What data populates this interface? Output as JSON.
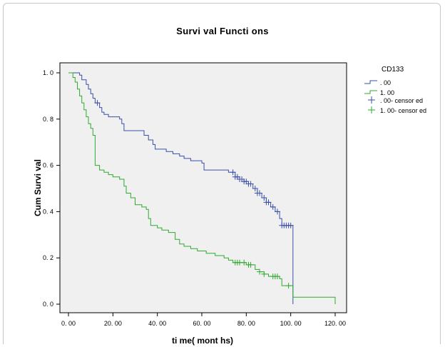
{
  "chart_data": {
    "type": "line",
    "title": "Survi val  Functi ons",
    "xlabel": "ti me( mont hs)",
    "ylabel": "Cum Survi val",
    "xlim": [
      0,
      120
    ],
    "ylim": [
      0,
      1
    ],
    "x_ticks": [
      "0. 00",
      "20. 00",
      "40. 00",
      "60. 00",
      "80. 00",
      "100. 00",
      "120. 00"
    ],
    "y_ticks": [
      "0. 0",
      "0. 2",
      "0. 4",
      "0. 6",
      "0. 8",
      "1. 0"
    ],
    "x_tick_values": [
      0,
      20,
      40,
      60,
      80,
      100,
      120
    ],
    "y_tick_values": [
      0,
      0.2,
      0.4,
      0.6,
      0.8,
      1.0
    ],
    "legend": {
      "title": "CD133",
      "placement": "right",
      "entries": [
        ". 00",
        "1. 00",
        ". 00- censor ed",
        "1. 00- censor ed"
      ]
    },
    "colors": {
      "blue": "#3a4fa8",
      "green": "#2faa2f",
      "plot_bg": "#f0f0f0"
    },
    "series": [
      {
        "name": ". 00",
        "color": "#3a4fa8",
        "points": [
          [
            0,
            1.0
          ],
          [
            5,
            0.99
          ],
          [
            6,
            0.97
          ],
          [
            8,
            0.95
          ],
          [
            9,
            0.93
          ],
          [
            10,
            0.91
          ],
          [
            11,
            0.89
          ],
          [
            12,
            0.87
          ],
          [
            14,
            0.85
          ],
          [
            15,
            0.83
          ],
          [
            16,
            0.82
          ],
          [
            18,
            0.81
          ],
          [
            23,
            0.8
          ],
          [
            24,
            0.78
          ],
          [
            25,
            0.75
          ],
          [
            34,
            0.73
          ],
          [
            36,
            0.71
          ],
          [
            38,
            0.69
          ],
          [
            39,
            0.67
          ],
          [
            44,
            0.66
          ],
          [
            47,
            0.65
          ],
          [
            50,
            0.64
          ],
          [
            52,
            0.63
          ],
          [
            55,
            0.62
          ],
          [
            60,
            0.61
          ],
          [
            61,
            0.58
          ],
          [
            72,
            0.57
          ],
          [
            75,
            0.55
          ],
          [
            77,
            0.54
          ],
          [
            79,
            0.53
          ],
          [
            81,
            0.52
          ],
          [
            83,
            0.5
          ],
          [
            85,
            0.48
          ],
          [
            87,
            0.46
          ],
          [
            89,
            0.44
          ],
          [
            91,
            0.42
          ],
          [
            93,
            0.4
          ],
          [
            95,
            0.37
          ],
          [
            96,
            0.34
          ],
          [
            101,
            0.0
          ]
        ],
        "censored_x": [
          13,
          74,
          75,
          76,
          77,
          78,
          79,
          80,
          81,
          82,
          84,
          85,
          86,
          88,
          89,
          90,
          92,
          94,
          96,
          97,
          98,
          99,
          100
        ]
      },
      {
        "name": "1. 00",
        "color": "#2faa2f",
        "points": [
          [
            0,
            1.0
          ],
          [
            2,
            0.98
          ],
          [
            3,
            0.96
          ],
          [
            4,
            0.93
          ],
          [
            5,
            0.9
          ],
          [
            6,
            0.87
          ],
          [
            7,
            0.84
          ],
          [
            8,
            0.81
          ],
          [
            9,
            0.78
          ],
          [
            10,
            0.76
          ],
          [
            11,
            0.73
          ],
          [
            12,
            0.6
          ],
          [
            14,
            0.58
          ],
          [
            16,
            0.57
          ],
          [
            18,
            0.56
          ],
          [
            20,
            0.55
          ],
          [
            23,
            0.54
          ],
          [
            25,
            0.51
          ],
          [
            26,
            0.48
          ],
          [
            28,
            0.46
          ],
          [
            30,
            0.43
          ],
          [
            33,
            0.42
          ],
          [
            35,
            0.41
          ],
          [
            36,
            0.37
          ],
          [
            37,
            0.34
          ],
          [
            40,
            0.33
          ],
          [
            42,
            0.32
          ],
          [
            45,
            0.31
          ],
          [
            48,
            0.28
          ],
          [
            50,
            0.26
          ],
          [
            52,
            0.25
          ],
          [
            55,
            0.24
          ],
          [
            58,
            0.23
          ],
          [
            62,
            0.22
          ],
          [
            66,
            0.21
          ],
          [
            70,
            0.2
          ],
          [
            72,
            0.19
          ],
          [
            74,
            0.18
          ],
          [
            80,
            0.17
          ],
          [
            84,
            0.15
          ],
          [
            86,
            0.14
          ],
          [
            88,
            0.13
          ],
          [
            90,
            0.12
          ],
          [
            95,
            0.11
          ],
          [
            96,
            0.08
          ],
          [
            101,
            0.03
          ],
          [
            120,
            0.0
          ]
        ],
        "censored_x": [
          75,
          76,
          77,
          79,
          81,
          82,
          86,
          88,
          92,
          93,
          94,
          99
        ]
      }
    ]
  }
}
